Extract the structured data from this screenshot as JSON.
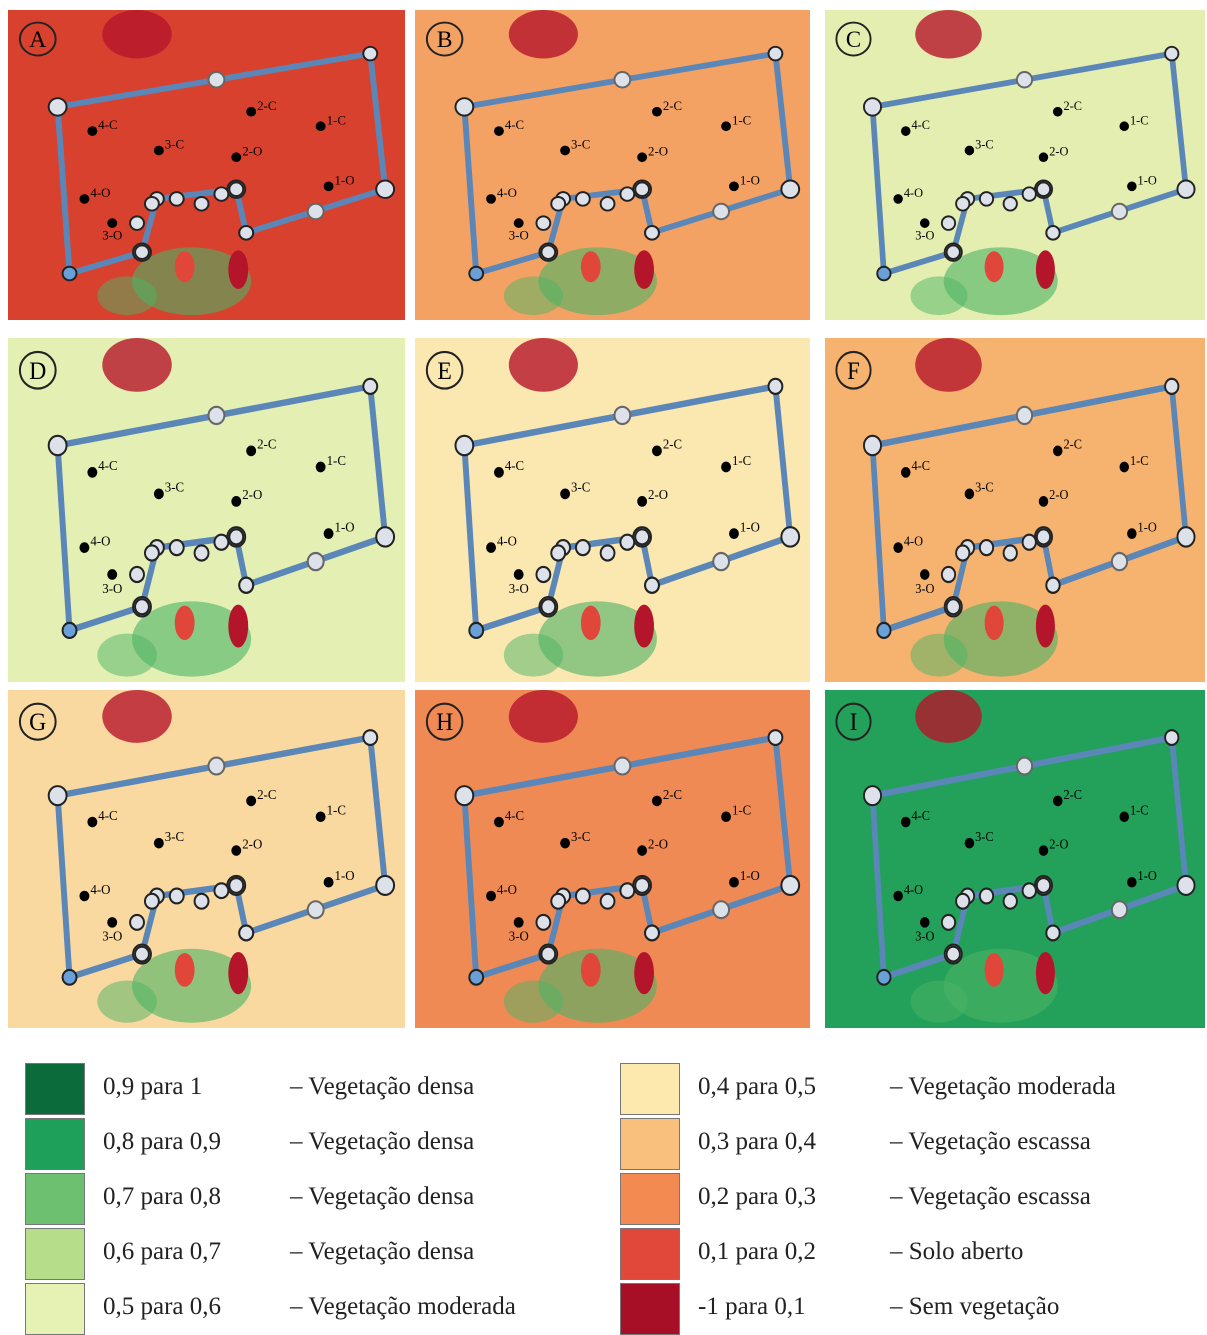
{
  "panels": [
    {
      "label": "A",
      "color": "#d9412f",
      "points": [
        "4-C",
        "3-C",
        "2-C",
        "1-C",
        "4-O",
        "3-O",
        "2-O",
        "1-O"
      ]
    },
    {
      "label": "B",
      "color": "#f4a264",
      "points": [
        "4-C",
        "3-C",
        "2-C",
        "1-C",
        "4-O",
        "3-O",
        "2-O",
        "1-O"
      ]
    },
    {
      "label": "C",
      "color": "#e3eeb0",
      "points": [
        "4-C",
        "3-C",
        "2-C",
        "1-C",
        "4-O",
        "3-O",
        "2-O",
        "1-O"
      ]
    },
    {
      "label": "D",
      "color": "#e4efb4",
      "points": [
        "4-C",
        "3-C",
        "2-C",
        "1-C",
        "4-O",
        "3-O",
        "2-O",
        "1-O"
      ]
    },
    {
      "label": "E",
      "color": "#fbe7b0",
      "points": [
        "4-C",
        "3-C",
        "2-C",
        "1-C",
        "4-O",
        "3-O",
        "2-O",
        "1-O"
      ]
    },
    {
      "label": "F",
      "color": "#f6b26f",
      "points": [
        "4-C",
        "3-C",
        "2-C",
        "1-C",
        "4-O",
        "3-O",
        "2-O",
        "1-O"
      ]
    },
    {
      "label": "G",
      "color": "#f9d9a0",
      "points": [
        "4-C",
        "3-C",
        "2-C",
        "1-C",
        "4-O",
        "3-O",
        "2-O",
        "1-O"
      ]
    },
    {
      "label": "H",
      "color": "#f08a55",
      "points": [
        "4-C",
        "3-C",
        "2-C",
        "1-C",
        "4-O",
        "3-O",
        "2-O",
        "1-O"
      ]
    },
    {
      "label": "I",
      "color": "#23a05a",
      "points": [
        "4-C",
        "3-C",
        "2-C",
        "1-C",
        "4-O",
        "3-O",
        "2-O",
        "1-O"
      ]
    }
  ],
  "legend": [
    {
      "range": "0,9 para 1",
      "class": "– Vegetação densa",
      "color": "#0b6b3a"
    },
    {
      "range": "0,8 para 0,9",
      "class": "– Vegetação densa",
      "color": "#1fa05a"
    },
    {
      "range": "0,7 para 0,8",
      "class": "– Vegetação densa",
      "color": "#6cc070"
    },
    {
      "range": "0,6 para 0,7",
      "class": "– Vegetação densa",
      "color": "#b6dd8a"
    },
    {
      "range": "0,5 para 0,6",
      "class": "– Vegetação moderada",
      "color": "#e6f1b4"
    },
    {
      "range": "0,4 para 0,5",
      "class": "– Vegetação moderada",
      "color": "#fde9ad"
    },
    {
      "range": "0,3 para 0,4",
      "class": "– Vegetação escassa",
      "color": "#f9bf7c"
    },
    {
      "range": "0,2 para 0,3",
      "class": "– Vegetação escassa",
      "color": "#f28a52"
    },
    {
      "range": "0,1 para 0,2",
      "class": "– Solo aberto",
      "color": "#e2483a"
    },
    {
      "range": "-1 para 0,1",
      "class": "– Sem vegetação",
      "color": "#a70f27"
    }
  ]
}
